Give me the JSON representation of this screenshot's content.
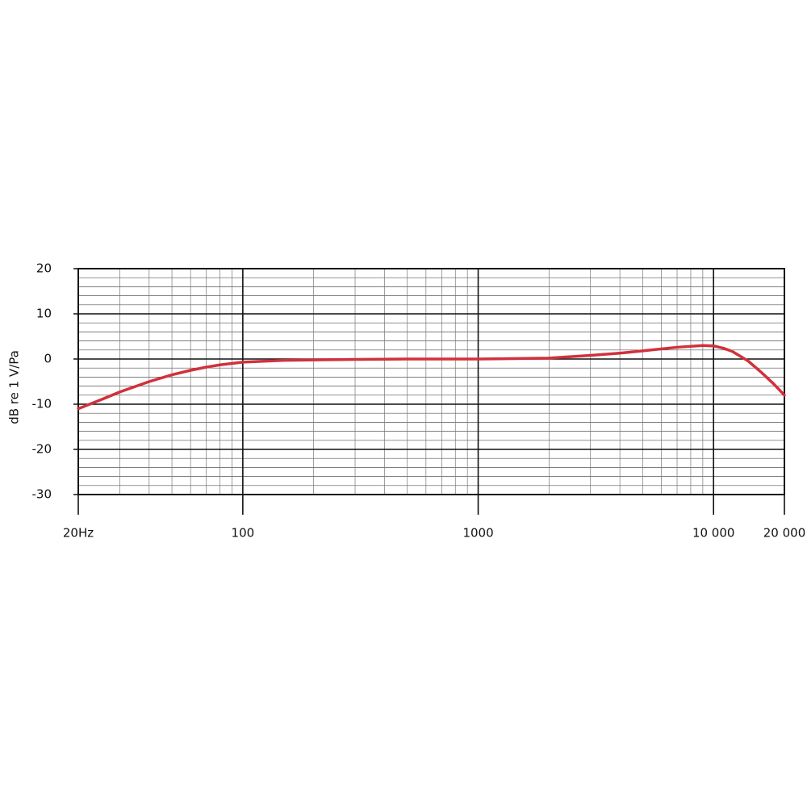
{
  "chart_data": {
    "type": "line",
    "ylabel": "dB re 1 V/Pa",
    "xscale": "log",
    "x": [
      20,
      25,
      30,
      40,
      50,
      60,
      70,
      80,
      100,
      150,
      200,
      300,
      500,
      1000,
      2000,
      3000,
      4000,
      5000,
      7000,
      9000,
      10000,
      11000,
      12000,
      14000,
      16000,
      18000,
      20000
    ],
    "series": [
      {
        "color": "#d0313c",
        "values": [
          -11,
          -9,
          -7.3,
          -5,
          -3.5,
          -2.5,
          -1.8,
          -1.3,
          -0.7,
          -0.3,
          -0.2,
          -0.1,
          0,
          0,
          0.2,
          0.8,
          1.3,
          1.8,
          2.6,
          3,
          2.9,
          2.4,
          1.7,
          -0.4,
          -3,
          -5.5,
          -8
        ]
      }
    ],
    "xlim": [
      20,
      20000
    ],
    "ylim": [
      -30,
      20
    ],
    "xticks": [
      {
        "value": 20,
        "label": "20Hz"
      },
      100,
      1000,
      {
        "value": 10000,
        "label": "10 000"
      },
      {
        "value": 20000,
        "label": "20 000"
      }
    ],
    "yticks": [
      20,
      10,
      0,
      -10,
      -20,
      -30
    ],
    "xminorticks": [
      30,
      40,
      50,
      60,
      70,
      80,
      90,
      200,
      300,
      400,
      500,
      600,
      700,
      800,
      900,
      2000,
      3000,
      4000,
      5000,
      6000,
      7000,
      8000,
      9000
    ],
    "yminorticks": [
      18,
      16,
      14,
      12,
      8,
      6,
      4,
      2,
      -2,
      -4,
      -6,
      -8,
      -12,
      -14,
      -16,
      -18,
      -22,
      -24,
      -26,
      -28
    ],
    "grid": true
  }
}
